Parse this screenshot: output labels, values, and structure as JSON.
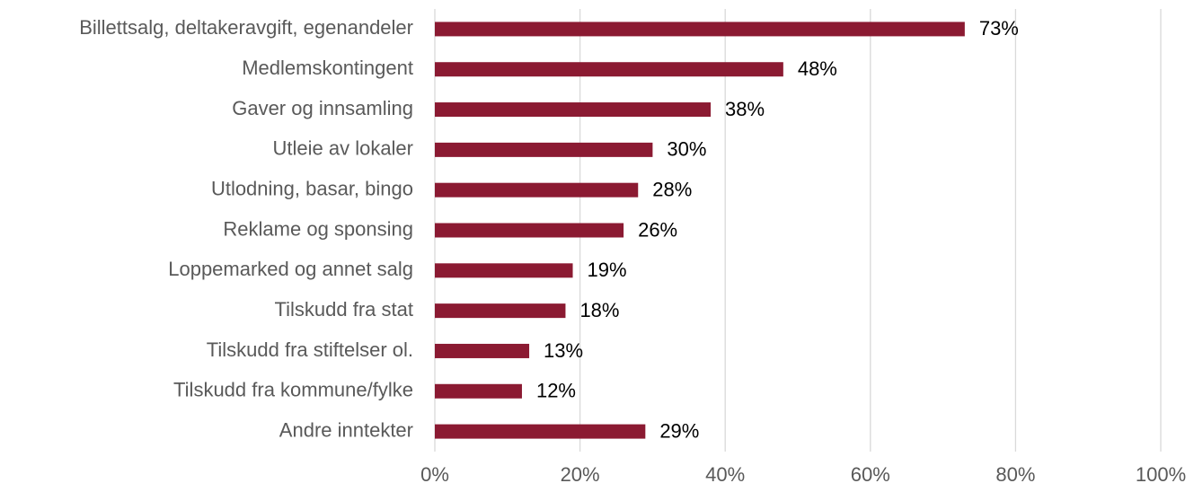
{
  "chart_data": {
    "type": "bar",
    "orientation": "horizontal",
    "categories": [
      "Billettsalg, deltakeravgift, egenandeler",
      "Medlemskontingent",
      "Gaver og innsamling",
      "Utleie av lokaler",
      "Utlodning, basar, bingo",
      "Reklame og sponsing",
      "Loppemarked og annet salg",
      "Tilskudd fra stat",
      "Tilskudd fra stiftelser ol.",
      "Tilskudd fra kommune/fylke",
      "Andre inntekter"
    ],
    "values": [
      73,
      48,
      38,
      30,
      28,
      26,
      19,
      18,
      13,
      12,
      29
    ],
    "value_labels": [
      "73%",
      "48%",
      "38%",
      "30%",
      "28%",
      "26%",
      "19%",
      "18%",
      "13%",
      "12%",
      "29%"
    ],
    "color": "#8b1a32",
    "xlim": [
      0,
      100
    ],
    "xticks": [
      {
        "value": 0,
        "label": "0%"
      },
      {
        "value": 20,
        "label": "20%"
      },
      {
        "value": 40,
        "label": "40%"
      },
      {
        "value": 60,
        "label": "60%"
      },
      {
        "value": 80,
        "label": "80%"
      },
      {
        "value": 100,
        "label": "100%"
      }
    ],
    "grid": true
  }
}
